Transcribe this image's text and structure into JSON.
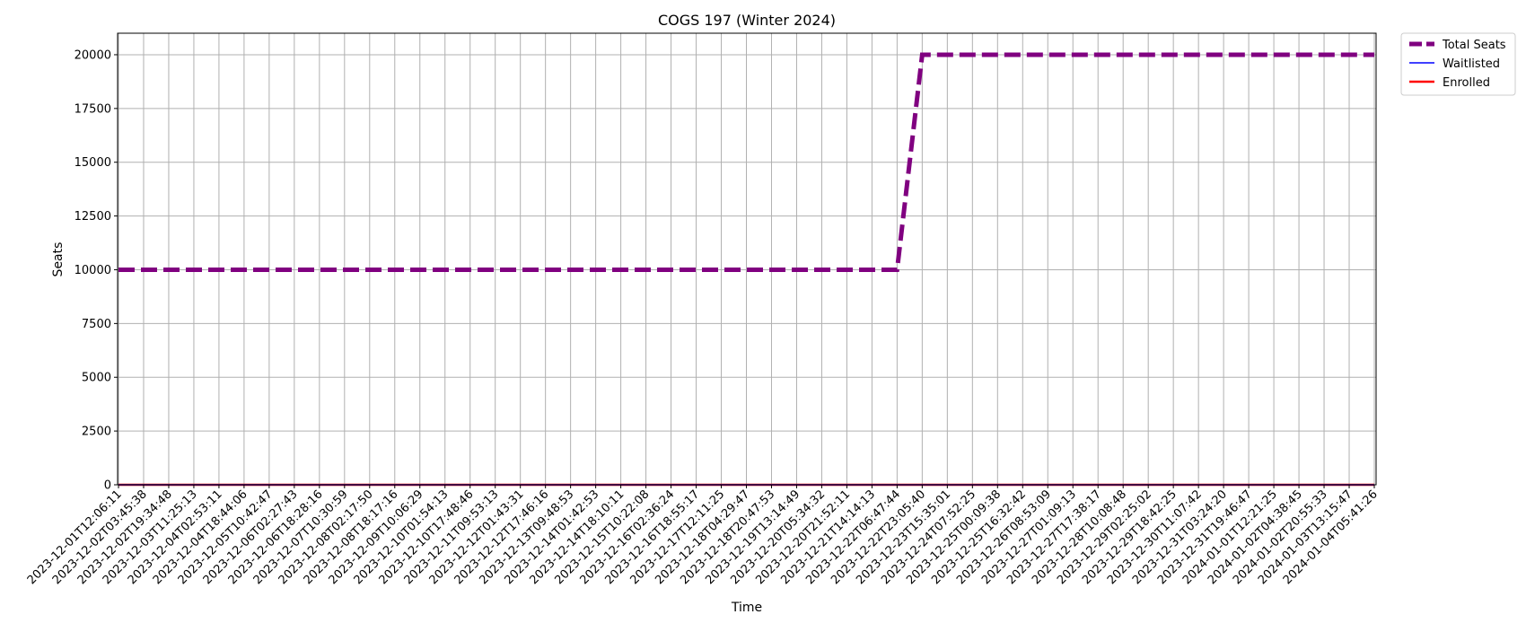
{
  "chart_data": {
    "type": "line",
    "title": "COGS 197 (Winter 2024)",
    "xlabel": "Time",
    "ylabel": "Seats",
    "ylim": [
      0,
      21000
    ],
    "yticks": [
      0,
      2500,
      5000,
      7500,
      10000,
      12500,
      15000,
      17500,
      20000
    ],
    "grid": true,
    "legend_position": "outside upper-right",
    "x": [
      "2023-12-01T12:06:11",
      "2023-12-02T03:45:38",
      "2023-12-02T19:34:48",
      "2023-12-03T11:25:13",
      "2023-12-04T02:53:11",
      "2023-12-04T18:44:06",
      "2023-12-05T10:42:47",
      "2023-12-06T02:27:43",
      "2023-12-06T18:28:16",
      "2023-12-07T10:30:59",
      "2023-12-08T02:17:50",
      "2023-12-08T18:17:16",
      "2023-12-09T10:06:29",
      "2023-12-10T01:54:13",
      "2023-12-10T17:48:46",
      "2023-12-11T09:53:13",
      "2023-12-12T01:43:31",
      "2023-12-12T17:46:16",
      "2023-12-13T09:48:53",
      "2023-12-14T01:42:53",
      "2023-12-14T18:10:11",
      "2023-12-15T10:22:08",
      "2023-12-16T02:36:24",
      "2023-12-16T18:55:17",
      "2023-12-17T12:11:25",
      "2023-12-18T04:29:47",
      "2023-12-18T20:47:53",
      "2023-12-19T13:14:49",
      "2023-12-20T05:34:32",
      "2023-12-20T21:52:11",
      "2023-12-21T14:14:13",
      "2023-12-22T06:47:44",
      "2023-12-22T23:05:40",
      "2023-12-23T15:35:01",
      "2023-12-24T07:52:25",
      "2023-12-25T00:09:38",
      "2023-12-25T16:32:42",
      "2023-12-26T08:53:09",
      "2023-12-27T01:09:13",
      "2023-12-27T17:38:17",
      "2023-12-28T10:08:48",
      "2023-12-29T02:25:02",
      "2023-12-29T18:42:25",
      "2023-12-30T11:07:42",
      "2023-12-31T03:24:20",
      "2023-12-31T19:46:47",
      "2024-01-01T12:21:25",
      "2024-01-02T04:38:45",
      "2024-01-02T20:55:33",
      "2024-01-03T13:15:47",
      "2024-01-04T05:41:26"
    ],
    "series": [
      {
        "name": "Total Seats",
        "color": "#800080",
        "style": "dashed",
        "values": [
          10000,
          10000,
          10000,
          10000,
          10000,
          10000,
          10000,
          10000,
          10000,
          10000,
          10000,
          10000,
          10000,
          10000,
          10000,
          10000,
          10000,
          10000,
          10000,
          10000,
          10000,
          10000,
          10000,
          10000,
          10000,
          10000,
          10000,
          10000,
          10000,
          10000,
          10000,
          10000,
          20000,
          20000,
          20000,
          20000,
          20000,
          20000,
          20000,
          20000,
          20000,
          20000,
          20000,
          20000,
          20000,
          20000,
          20000,
          20000,
          20000,
          20000,
          20000
        ]
      },
      {
        "name": "Waitlisted",
        "color": "#0000ff",
        "style": "solid",
        "values": [
          0,
          0,
          0,
          0,
          0,
          0,
          0,
          0,
          0,
          0,
          0,
          0,
          0,
          0,
          0,
          0,
          0,
          0,
          0,
          0,
          0,
          0,
          0,
          0,
          0,
          0,
          0,
          0,
          0,
          0,
          0,
          0,
          0,
          0,
          0,
          0,
          0,
          0,
          0,
          0,
          0,
          0,
          0,
          0,
          0,
          0,
          0,
          0,
          0,
          0,
          0
        ]
      },
      {
        "name": "Enrolled",
        "color": "#ff0000",
        "style": "solid",
        "values": [
          0,
          0,
          0,
          0,
          0,
          0,
          0,
          0,
          0,
          0,
          0,
          0,
          0,
          0,
          0,
          0,
          0,
          0,
          0,
          0,
          0,
          0,
          0,
          0,
          0,
          0,
          0,
          0,
          0,
          0,
          0,
          0,
          0,
          0,
          0,
          0,
          0,
          0,
          0,
          0,
          0,
          0,
          0,
          0,
          0,
          0,
          0,
          0,
          0,
          0,
          0
        ]
      }
    ]
  }
}
